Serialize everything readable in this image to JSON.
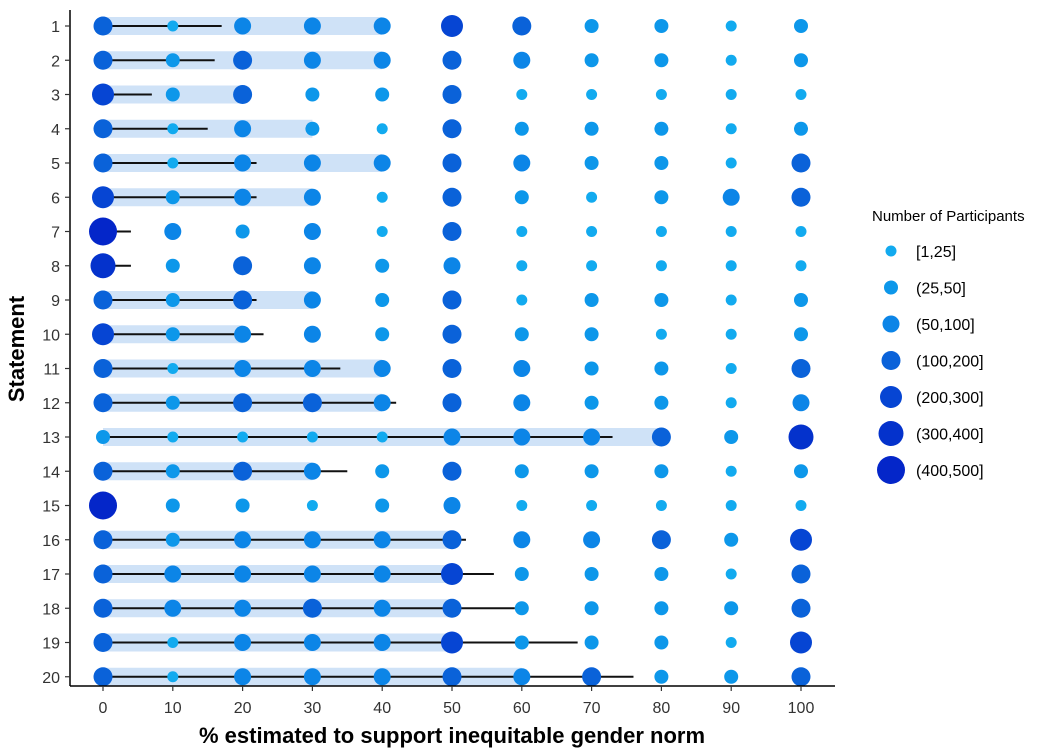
{
  "chart_data": {
    "type": "scatter",
    "xlabel": "% estimated to support inequitable gender norm",
    "ylabel": "Statement",
    "x_ticks": [
      0,
      10,
      20,
      30,
      40,
      50,
      60,
      70,
      80,
      90,
      100
    ],
    "xlim": [
      -4,
      104
    ],
    "statements": [
      1,
      2,
      3,
      4,
      5,
      6,
      7,
      8,
      9,
      10,
      11,
      12,
      13,
      14,
      15,
      16,
      17,
      18,
      19,
      20
    ],
    "legend": {
      "title": "Number of Participants",
      "position": "right",
      "entries": [
        "[1,25]",
        "(25,50]",
        "(50,100]",
        "(100,200]",
        "(200,300]",
        "(300,400]",
        "(400,500]"
      ]
    },
    "size_class_colors": [
      "#12aaef",
      "#0d97ea",
      "#0c85e7",
      "#0a62d9",
      "#0645d3",
      "#0432cc",
      "#0426c9"
    ],
    "band_color": "#cfe2f7",
    "whisker_color": "#111111",
    "rows": [
      {
        "statement": 1,
        "band": [
          0,
          40
        ],
        "whisker": [
          0,
          17
        ],
        "sizes": [
          3,
          0,
          2,
          2,
          2,
          4,
          3,
          1,
          1,
          0,
          1
        ]
      },
      {
        "statement": 2,
        "band": [
          0,
          40
        ],
        "whisker": [
          0,
          16
        ],
        "sizes": [
          3,
          1,
          3,
          2,
          2,
          3,
          2,
          1,
          1,
          0,
          1
        ]
      },
      {
        "statement": 3,
        "band": [
          0,
          20
        ],
        "whisker": [
          0,
          7
        ],
        "sizes": [
          4,
          1,
          3,
          1,
          1,
          3,
          0,
          0,
          0,
          0,
          0
        ]
      },
      {
        "statement": 4,
        "band": [
          0,
          30
        ],
        "whisker": [
          0,
          15
        ],
        "sizes": [
          3,
          0,
          2,
          1,
          0,
          3,
          1,
          1,
          1,
          0,
          1
        ]
      },
      {
        "statement": 5,
        "band": [
          0,
          40
        ],
        "whisker": [
          0,
          22
        ],
        "sizes": [
          3,
          0,
          2,
          2,
          2,
          3,
          2,
          1,
          1,
          0,
          3
        ]
      },
      {
        "statement": 6,
        "band": [
          0,
          30
        ],
        "whisker": [
          0,
          22
        ],
        "sizes": [
          4,
          1,
          2,
          2,
          0,
          3,
          1,
          0,
          1,
          2,
          3
        ]
      },
      {
        "statement": 7,
        "band": [
          0,
          0
        ],
        "whisker": [
          0,
          4
        ],
        "sizes": [
          6,
          2,
          1,
          2,
          0,
          3,
          0,
          0,
          0,
          0,
          0
        ]
      },
      {
        "statement": 8,
        "band": [
          0,
          0
        ],
        "whisker": [
          0,
          4
        ],
        "sizes": [
          5,
          1,
          3,
          2,
          1,
          2,
          0,
          0,
          0,
          0,
          0
        ]
      },
      {
        "statement": 9,
        "band": [
          0,
          30
        ],
        "whisker": [
          0,
          22
        ],
        "sizes": [
          3,
          1,
          3,
          2,
          1,
          3,
          0,
          1,
          1,
          0,
          1
        ]
      },
      {
        "statement": 10,
        "band": [
          0,
          20
        ],
        "whisker": [
          0,
          23
        ],
        "sizes": [
          4,
          1,
          2,
          2,
          1,
          3,
          1,
          1,
          0,
          0,
          1
        ]
      },
      {
        "statement": 11,
        "band": [
          0,
          40
        ],
        "whisker": [
          0,
          34
        ],
        "sizes": [
          3,
          0,
          2,
          2,
          2,
          3,
          2,
          1,
          1,
          0,
          3
        ]
      },
      {
        "statement": 12,
        "band": [
          0,
          40
        ],
        "whisker": [
          0,
          42
        ],
        "sizes": [
          3,
          1,
          3,
          3,
          2,
          3,
          2,
          1,
          1,
          0,
          2
        ]
      },
      {
        "statement": 13,
        "band": [
          0,
          80
        ],
        "whisker": [
          0,
          73
        ],
        "sizes": [
          1,
          0,
          0,
          0,
          0,
          2,
          2,
          2,
          3,
          1,
          5
        ]
      },
      {
        "statement": 14,
        "band": [
          0,
          30
        ],
        "whisker": [
          0,
          35
        ],
        "sizes": [
          3,
          1,
          3,
          2,
          1,
          3,
          1,
          1,
          1,
          0,
          1
        ]
      },
      {
        "statement": 15,
        "band": [
          0,
          0
        ],
        "whisker": [
          0,
          0
        ],
        "sizes": [
          6,
          1,
          1,
          0,
          1,
          2,
          0,
          0,
          0,
          0,
          0
        ]
      },
      {
        "statement": 16,
        "band": [
          0,
          50
        ],
        "whisker": [
          0,
          52
        ],
        "sizes": [
          3,
          1,
          2,
          2,
          2,
          3,
          2,
          2,
          3,
          1,
          4
        ]
      },
      {
        "statement": 17,
        "band": [
          0,
          50
        ],
        "whisker": [
          0,
          56
        ],
        "sizes": [
          3,
          2,
          2,
          2,
          2,
          4,
          1,
          1,
          1,
          0,
          3
        ]
      },
      {
        "statement": 18,
        "band": [
          0,
          50
        ],
        "whisker": [
          0,
          59
        ],
        "sizes": [
          3,
          2,
          2,
          3,
          2,
          3,
          1,
          1,
          1,
          1,
          3
        ]
      },
      {
        "statement": 19,
        "band": [
          0,
          50
        ],
        "whisker": [
          0,
          68
        ],
        "sizes": [
          3,
          0,
          2,
          2,
          2,
          4,
          1,
          1,
          1,
          0,
          4
        ]
      },
      {
        "statement": 20,
        "band": [
          0,
          60
        ],
        "whisker": [
          0,
          76
        ],
        "sizes": [
          3,
          0,
          2,
          2,
          2,
          3,
          2,
          3,
          1,
          1,
          3
        ]
      }
    ]
  }
}
